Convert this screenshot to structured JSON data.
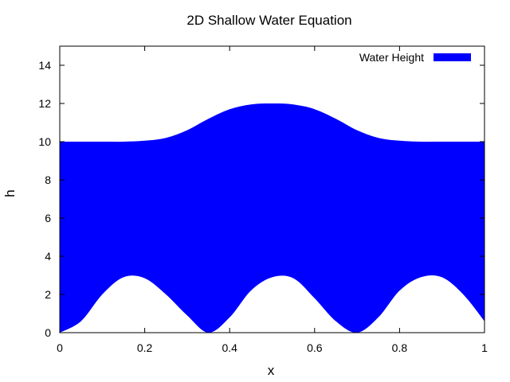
{
  "chart_data": {
    "type": "area",
    "title": "2D Shallow Water Equation",
    "xlabel": "x",
    "ylabel": "h",
    "xlim": [
      0,
      1
    ],
    "ylim": [
      0,
      15
    ],
    "x_ticks": [
      "0",
      "0.2",
      "0.4",
      "0.6",
      "0.8",
      "1"
    ],
    "y_ticks": [
      "0",
      "2",
      "4",
      "6",
      "8",
      "10",
      "12",
      "14"
    ],
    "legend": {
      "placement": "top-right",
      "entries": [
        "Water Height"
      ]
    },
    "grid": false,
    "series": [
      {
        "name": "Water Height",
        "color": "#0000ff",
        "x": [
          0,
          0.05,
          0.1,
          0.15,
          0.2,
          0.25,
          0.3,
          0.35,
          0.4,
          0.45,
          0.5,
          0.55,
          0.6,
          0.65,
          0.7,
          0.75,
          0.8,
          0.85,
          0.9,
          0.95,
          1.0
        ],
        "top": [
          10,
          10,
          10,
          10,
          10.05,
          10.2,
          10.6,
          11.2,
          11.7,
          11.95,
          12,
          11.95,
          11.7,
          11.2,
          10.6,
          10.2,
          10.05,
          10,
          10,
          10,
          10
        ],
        "bottom": [
          0,
          0.6,
          2.0,
          2.9,
          2.85,
          2.0,
          0.9,
          0,
          0.8,
          2.2,
          2.9,
          2.85,
          1.8,
          0.6,
          0,
          0.8,
          2.2,
          2.9,
          2.9,
          2.0,
          0.6
        ]
      }
    ]
  }
}
